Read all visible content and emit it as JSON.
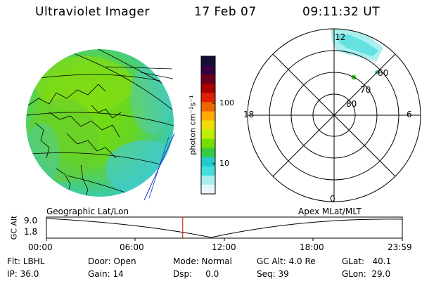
{
  "header": {
    "title": "Ultraviolet Imager",
    "date": "17 Feb 07",
    "time": "09:11:32 UT"
  },
  "colorbar": {
    "unit_label": "photon cm⁻²s⁻¹",
    "ticks": [
      "100",
      "10"
    ],
    "colors": [
      "#111133",
      "#330044",
      "#660022",
      "#aa0000",
      "#dd2200",
      "#ee6600",
      "#ffaa00",
      "#eedd00",
      "#bbee00",
      "#77dd00",
      "#33cc44",
      "#22cccc",
      "#44dddd",
      "#aaeeee",
      "#e8f8f8"
    ]
  },
  "polar": {
    "mlt_labels": {
      "top": "12",
      "left": "18",
      "right": "6",
      "bottom": "0"
    },
    "lat_labels": [
      "60",
      "70",
      "80"
    ]
  },
  "timeline": {
    "left_title": "Geographic Lat/Lon",
    "right_title": "Apex MLat/MLT",
    "ylabel": "GC Alt",
    "y_ticks": [
      "9.0",
      "1.8"
    ],
    "x_ticks": [
      "00:00",
      "06:00",
      "12:00",
      "18:00",
      "23:59"
    ],
    "current_time_fraction": 0.383
  },
  "status": {
    "flt": "Flt: LBHL",
    "door": "Door: Open",
    "mode": "Mode: Normal",
    "gc_alt": "GC Alt: 4.0 Re",
    "glat": "GLat:   40.1",
    "ip": "IP: 36.0",
    "gain": "Gain: 14",
    "dsp": "Dsp:     0.0",
    "seq": "Seq: 39",
    "glon": "GLon:  29.0"
  }
}
